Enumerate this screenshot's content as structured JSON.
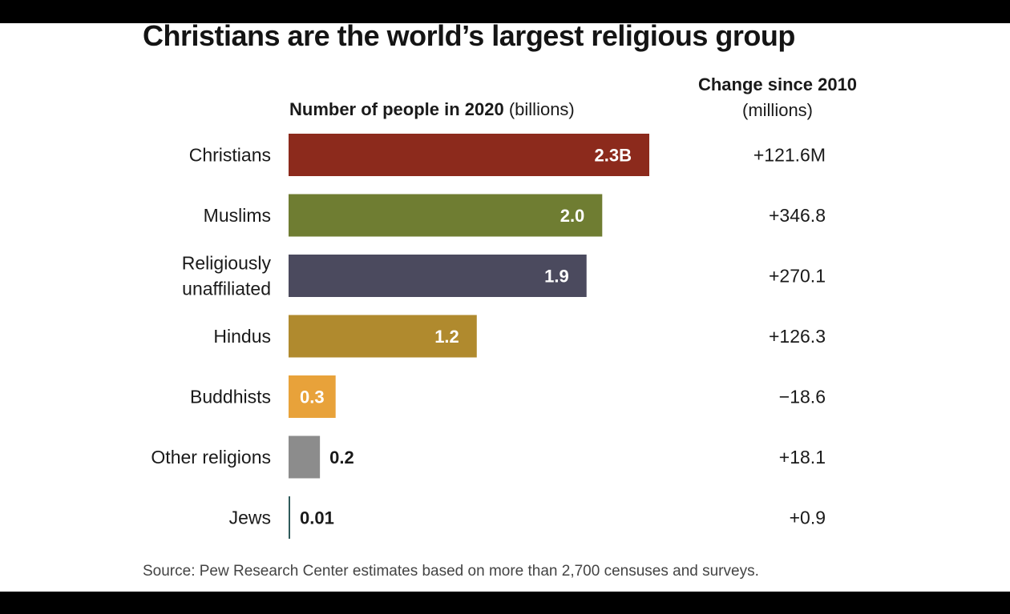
{
  "title": "Christians are the world’s largest religious group",
  "subheads": {
    "left_bold": "Number of people in 2020",
    "left_unit": " (billions)",
    "right_bold": "Change since 2010",
    "right_unit": "(millions)"
  },
  "source": "Source: Pew Research Center estimates based on more than 2,700 censuses and surveys.",
  "chart_data": {
    "type": "bar",
    "orientation": "horizontal",
    "categories": [
      [
        "Christians"
      ],
      [
        "Muslims"
      ],
      [
        "Religiously",
        "unaffiliated"
      ],
      [
        "Hindus"
      ],
      [
        "Buddhists"
      ],
      [
        "Other religions"
      ],
      [
        "Jews"
      ]
    ],
    "values": [
      2.3,
      2.0,
      1.9,
      1.2,
      0.3,
      0.2,
      0.01
    ],
    "value_labels": [
      "2.3B",
      "2.0",
      "1.9",
      "1.2",
      "0.3",
      "0.2",
      "0.01"
    ],
    "change_since_2010_millions": [
      "+121.6M",
      "+346.8",
      "+270.1",
      "+126.3",
      "−18.6",
      "+18.1",
      "+0.9"
    ],
    "colors": [
      "#8c2a1c",
      "#6f7d32",
      "#4b4a5e",
      "#b08a2e",
      "#e8a23a",
      "#8c8c8c",
      "#2f5a5a"
    ],
    "label_inside": [
      true,
      true,
      true,
      true,
      true,
      false,
      false
    ],
    "xlim": [
      0,
      2.3
    ],
    "grid": false,
    "legend": "none"
  }
}
